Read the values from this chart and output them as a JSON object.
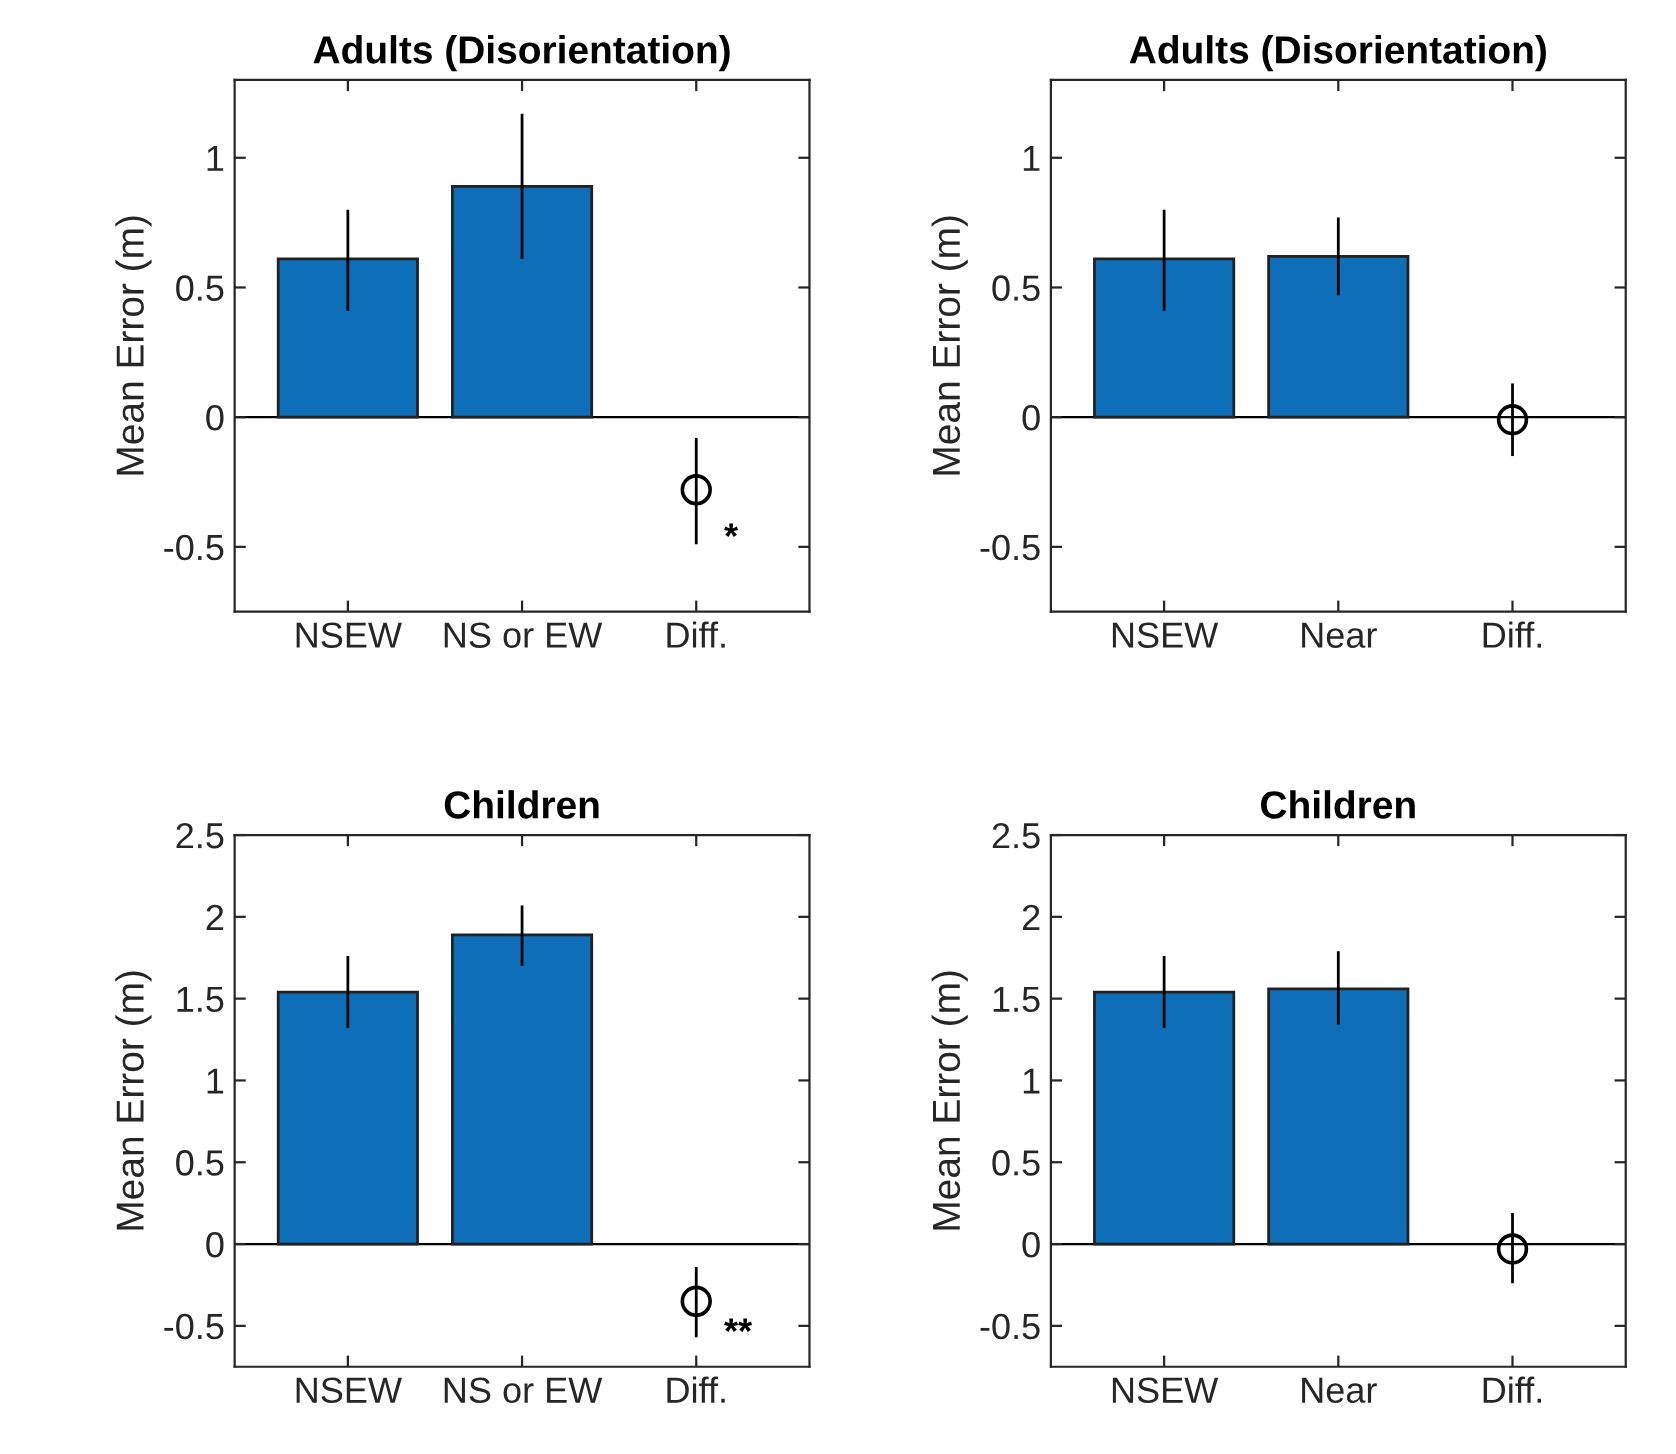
{
  "chart_data": [
    {
      "type": "bar",
      "title": "Adults (Disorientation)",
      "ylabel": "Mean Error (m)",
      "categories": [
        "NSEW",
        "NS or EW",
        "Diff."
      ],
      "ylim": [
        -0.75,
        1.3
      ],
      "yticks": [
        -0.5,
        0,
        0.5,
        1
      ],
      "grid": false,
      "legend": false,
      "series": [
        {
          "color": "#0e6eb8",
          "values": [
            0.61,
            0.89,
            null
          ],
          "errors": [
            [
              0.41,
              0.8
            ],
            [
              0.61,
              1.17
            ],
            null
          ]
        },
        {
          "type": "scatter",
          "color": "#000000",
          "marker": "circle",
          "x": [
            "Diff."
          ],
          "values": [
            -0.28
          ],
          "errors": [
            [
              -0.49,
              -0.08
            ]
          ]
        }
      ],
      "ref_lines": [
        {
          "axis": "y",
          "value": 0,
          "color": "#000000"
        }
      ],
      "annotations": [
        {
          "text": "*",
          "x": "Diff.",
          "y": -0.47
        }
      ]
    },
    {
      "type": "bar",
      "title": "Adults (Disorientation)",
      "ylabel": "Mean Error (m)",
      "categories": [
        "NSEW",
        "Near",
        "Diff."
      ],
      "ylim": [
        -0.75,
        1.3
      ],
      "yticks": [
        -0.5,
        0,
        0.5,
        1
      ],
      "grid": false,
      "legend": false,
      "series": [
        {
          "color": "#0e6eb8",
          "values": [
            0.61,
            0.62,
            null
          ],
          "errors": [
            [
              0.41,
              0.8
            ],
            [
              0.47,
              0.77
            ],
            null
          ]
        },
        {
          "type": "scatter",
          "color": "#000000",
          "marker": "circle",
          "x": [
            "Diff."
          ],
          "values": [
            -0.01
          ],
          "errors": [
            [
              -0.15,
              0.13
            ]
          ]
        }
      ],
      "ref_lines": [
        {
          "axis": "y",
          "value": 0,
          "color": "#000000"
        }
      ]
    },
    {
      "type": "bar",
      "title": "Children",
      "ylabel": "Mean Error (m)",
      "categories": [
        "NSEW",
        "NS or EW",
        "Diff."
      ],
      "ylim": [
        -0.75,
        2.5
      ],
      "yticks": [
        -0.5,
        0,
        0.5,
        1,
        1.5,
        2,
        2.5
      ],
      "grid": false,
      "legend": false,
      "series": [
        {
          "color": "#0e6eb8",
          "values": [
            1.54,
            1.89,
            null
          ],
          "errors": [
            [
              1.32,
              1.76
            ],
            [
              1.7,
              2.07
            ],
            null
          ]
        },
        {
          "type": "scatter",
          "color": "#000000",
          "marker": "circle",
          "x": [
            "Diff."
          ],
          "values": [
            -0.35
          ],
          "errors": [
            [
              -0.57,
              -0.14
            ]
          ]
        }
      ],
      "ref_lines": [
        {
          "axis": "y",
          "value": 0,
          "color": "#000000"
        }
      ],
      "annotations": [
        {
          "text": "**",
          "x": "Diff.",
          "y": -0.55
        }
      ]
    },
    {
      "type": "bar",
      "title": "Children",
      "ylabel": "Mean Error (m)",
      "categories": [
        "NSEW",
        "Near",
        "Diff."
      ],
      "ylim": [
        -0.75,
        2.5
      ],
      "yticks": [
        -0.5,
        0,
        0.5,
        1,
        1.5,
        2,
        2.5
      ],
      "grid": false,
      "legend": false,
      "series": [
        {
          "color": "#0e6eb8",
          "values": [
            1.54,
            1.56,
            null
          ],
          "errors": [
            [
              1.32,
              1.76
            ],
            [
              1.34,
              1.79
            ],
            null
          ]
        },
        {
          "type": "scatter",
          "color": "#000000",
          "marker": "circle",
          "x": [
            "Diff."
          ],
          "values": [
            -0.03
          ],
          "errors": [
            [
              -0.24,
              0.19
            ]
          ]
        }
      ],
      "ref_lines": [
        {
          "axis": "y",
          "value": 0,
          "color": "#000000"
        }
      ]
    }
  ]
}
